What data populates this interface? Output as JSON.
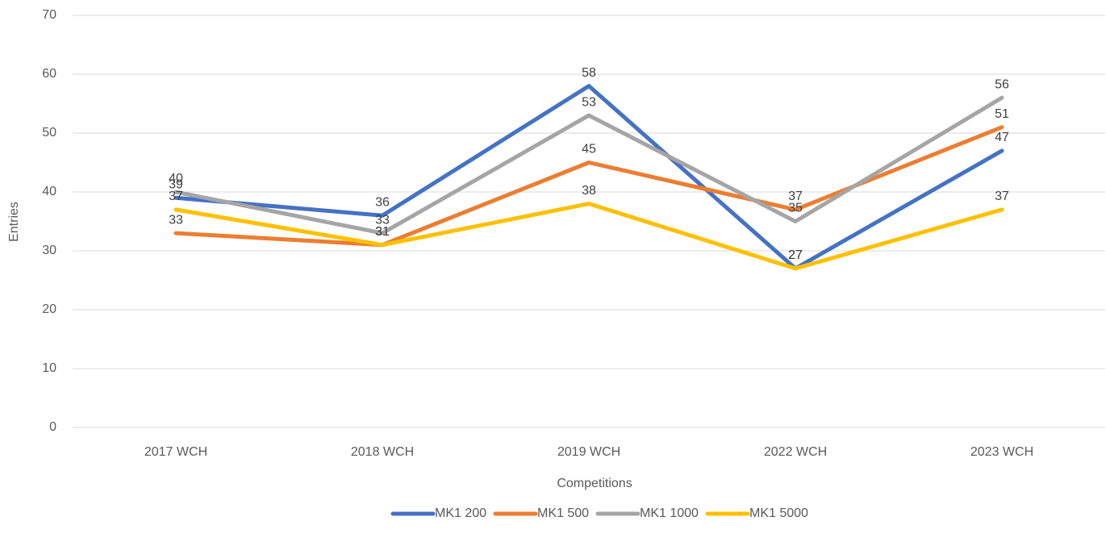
{
  "chart_data": {
    "type": "line",
    "x_label": "Competitions",
    "y_label": "Entries",
    "categories": [
      "2017 WCH",
      "2018 WCH",
      "2019 WCH",
      "2022 WCH",
      "2023 WCH"
    ],
    "series": [
      {
        "name": "MK1 200",
        "color": "#4472c4",
        "values": [
          39,
          36,
          58,
          27,
          47
        ]
      },
      {
        "name": "MK1 500",
        "color": "#ed7d31",
        "values": [
          33,
          31,
          45,
          37,
          51
        ]
      },
      {
        "name": "MK1 1000",
        "color": "#a5a5a5",
        "values": [
          40,
          33,
          53,
          35,
          56
        ]
      },
      {
        "name": "MK1 5000",
        "color": "#ffc000",
        "values": [
          37,
          31,
          38,
          27,
          37
        ]
      }
    ],
    "ylim": [
      0,
      70
    ],
    "yticks": [
      0,
      10,
      20,
      30,
      40,
      50,
      60,
      70
    ],
    "grid": true,
    "legend": "bottom"
  }
}
